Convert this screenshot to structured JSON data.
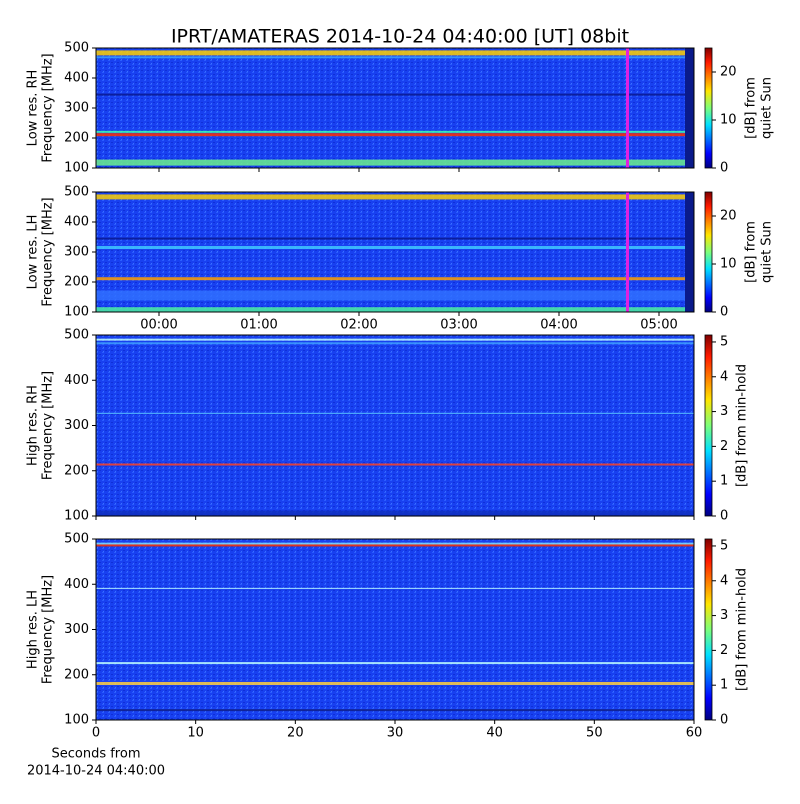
{
  "chart_data": [
    {
      "type": "heatmap",
      "title": "IPRT/AMATERAS 2014-10-24 04:40:00 [UT]   08bit",
      "ylabel": [
        "Low res. RH",
        "Frequency [MHz]"
      ],
      "ylim": [
        100,
        500
      ],
      "yticks": [
        100,
        200,
        300,
        400,
        500
      ],
      "xlim": [
        -0.63,
        5.35
      ],
      "colorbar_label": [
        "[dB] from",
        "quiet Sun"
      ],
      "clim": [
        0,
        25
      ],
      "cticks": [
        0,
        10,
        20
      ]
    },
    {
      "type": "heatmap",
      "ylabel": [
        "Low res. LH",
        "Frequency [MHz]"
      ],
      "ylim": [
        100,
        500
      ],
      "yticks": [
        100,
        200,
        300,
        400,
        500
      ],
      "xlim": [
        -0.63,
        5.35
      ],
      "xticks": [
        {
          "value": 0,
          "label": "00:00"
        },
        {
          "value": 1,
          "label": "01:00"
        },
        {
          "value": 2,
          "label": "02:00"
        },
        {
          "value": 3,
          "label": "03:00"
        },
        {
          "value": 4,
          "label": "04:00"
        },
        {
          "value": 5,
          "label": "05:00"
        }
      ],
      "colorbar_label": [
        "[dB] from",
        "quiet Sun"
      ],
      "clim": [
        0,
        25
      ],
      "cticks": [
        0,
        10,
        20
      ]
    },
    {
      "type": "heatmap",
      "ylabel": [
        "High res. RH",
        "Frequency [MHz]"
      ],
      "ylim": [
        100,
        500
      ],
      "yticks": [
        100,
        200,
        300,
        400,
        500
      ],
      "xlim": [
        0,
        60
      ],
      "colorbar_label": [
        "[dB] from min-hold"
      ],
      "clim": [
        0,
        5.2
      ],
      "cticks": [
        0,
        1,
        2,
        3,
        4,
        5
      ]
    },
    {
      "type": "heatmap",
      "ylabel": [
        "High res. LH",
        "Frequency [MHz]"
      ],
      "ylim": [
        100,
        500
      ],
      "yticks": [
        100,
        200,
        300,
        400,
        500
      ],
      "xlim": [
        0,
        60
      ],
      "xticks": [
        0,
        10,
        20,
        30,
        40,
        50,
        60
      ],
      "xlabel": [
        "Seconds from",
        "2014-10-24 04:40:00"
      ],
      "colorbar_label": [
        "[dB] from min-hold"
      ],
      "clim": [
        0,
        5.2
      ],
      "cticks": [
        0,
        1,
        2,
        3,
        4,
        5
      ]
    }
  ]
}
